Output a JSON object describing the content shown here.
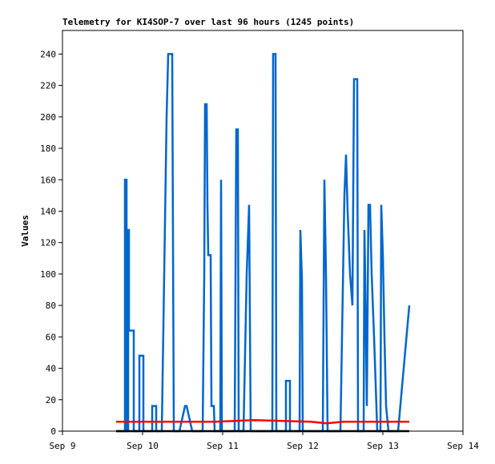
{
  "chart_data": {
    "type": "line",
    "title": "Telemetry for KI4SOP-7 over last 96 hours (1245 points)",
    "y_label": "Values",
    "xlim": [
      9,
      14
    ],
    "xticks": [
      {
        "value": 9,
        "label": "Sep 9"
      },
      {
        "value": 10,
        "label": "Sep 10"
      },
      {
        "value": 11,
        "label": "Sep 11"
      },
      {
        "value": 12,
        "label": "Sep 12"
      },
      {
        "value": 13,
        "label": "Sep 13"
      },
      {
        "value": 14,
        "label": "Sep 14"
      }
    ],
    "ylim": [
      0,
      255
    ],
    "yticks": [
      0,
      20,
      40,
      60,
      80,
      100,
      120,
      140,
      160,
      180,
      200,
      220,
      240
    ],
    "series": [
      {
        "color": "#0066cc",
        "x": [
          9.67,
          9.78,
          9.78,
          9.8,
          9.8,
          9.82,
          9.82,
          9.83,
          9.83,
          9.89,
          9.89,
          9.96,
          9.96,
          10.01,
          10.01,
          10.12,
          10.12,
          10.17,
          10.17,
          10.24,
          10.27,
          10.3,
          10.32,
          10.37,
          10.39,
          10.46,
          10.53,
          10.55,
          10.62,
          10.75,
          10.77,
          10.78,
          10.8,
          10.81,
          10.82,
          10.85,
          10.86,
          10.89,
          10.9,
          10.97,
          10.98,
          10.99,
          11.15,
          11.17,
          11.19,
          11.2,
          11.26,
          11.3,
          11.33,
          11.35,
          11.62,
          11.63,
          11.66,
          11.67,
          11.79,
          11.79,
          11.84,
          11.84,
          11.96,
          11.97,
          11.99,
          12.0,
          12.25,
          12.27,
          12.29,
          12.31,
          12.47,
          12.52,
          12.54,
          12.56,
          12.59,
          12.62,
          12.64,
          12.68,
          12.69,
          12.76,
          12.77,
          12.78,
          12.8,
          12.82,
          12.84,
          12.86,
          12.89,
          12.93,
          12.97,
          12.98,
          13.0,
          13.02,
          13.04,
          13.07,
          13.19,
          13.33
        ],
        "values": [
          0,
          0,
          160,
          160,
          0,
          0,
          128,
          128,
          64,
          64,
          0,
          0,
          48,
          48,
          0,
          0,
          16,
          16,
          0,
          0,
          100,
          200,
          240,
          240,
          0,
          0,
          16,
          16,
          0,
          0,
          100,
          208,
          208,
          144,
          112,
          112,
          16,
          16,
          0,
          0,
          160,
          0,
          0,
          192,
          192,
          0,
          0,
          100,
          144,
          0,
          0,
          240,
          240,
          0,
          0,
          32,
          32,
          0,
          0,
          128,
          96,
          0,
          0,
          160,
          100,
          0,
          0,
          150,
          176,
          140,
          100,
          80,
          224,
          224,
          0,
          0,
          128,
          96,
          16,
          144,
          144,
          100,
          60,
          0,
          0,
          144,
          112,
          60,
          16,
          0,
          0,
          80
        ]
      },
      {
        "color": "#ff0000",
        "x": [
          9.67,
          10.9,
          11.4,
          12.1,
          12.3,
          12.5,
          13.33
        ],
        "values": [
          6,
          6,
          7,
          6,
          5,
          6,
          6
        ]
      },
      {
        "color": "#000000",
        "x": [
          9.67,
          13.33
        ],
        "values": [
          0,
          0
        ]
      }
    ]
  }
}
